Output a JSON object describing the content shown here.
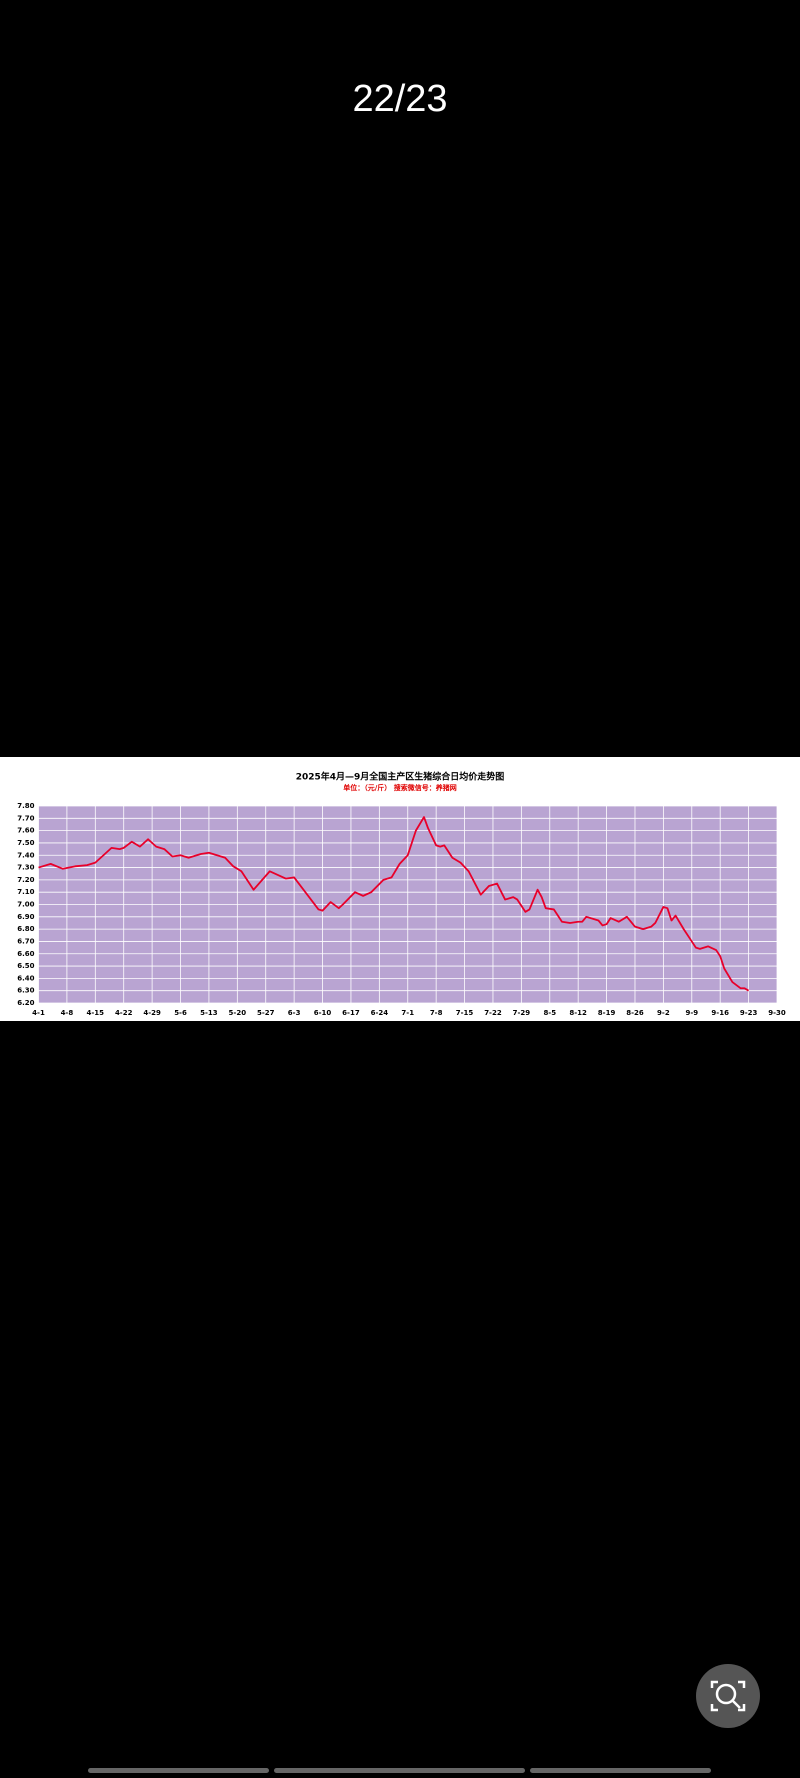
{
  "viewer": {
    "page_counter": "22/23"
  },
  "chart_data": {
    "type": "line",
    "title": "2025年4月—9月全国主产区生猪综合日均价走势图",
    "subtitle": "单位：（元/斤） 搜索微信号：养猪网",
    "color": "#e8002a",
    "background": "#b9a4d2",
    "grid": true,
    "x": [
      "4-1",
      "4-4",
      "4-7",
      "4-10",
      "4-13",
      "4-15",
      "4-17",
      "4-19",
      "4-21",
      "4-22",
      "4-24",
      "4-26",
      "4-28",
      "4-30",
      "5-2",
      "5-4",
      "5-6",
      "5-8",
      "5-11",
      "5-13",
      "5-15",
      "5-17",
      "5-19",
      "5-21",
      "5-24",
      "5-28",
      "6-1",
      "6-3",
      "6-9",
      "6-10",
      "6-12",
      "6-14",
      "6-15",
      "6-18",
      "6-20",
      "6-22",
      "6-25",
      "6-27",
      "6-29",
      "7-1",
      "7-3",
      "7-5",
      "7-6",
      "7-8",
      "7-9",
      "7-10",
      "7-12",
      "7-14",
      "7-16",
      "7-19",
      "7-21",
      "7-23",
      "7-25",
      "7-27",
      "7-28",
      "7-30",
      "7-31",
      "8-2",
      "8-3",
      "8-4",
      "8-6",
      "8-8",
      "8-10",
      "8-12",
      "8-13",
      "8-14",
      "8-16",
      "8-17",
      "8-18",
      "8-19",
      "8-20",
      "8-22",
      "8-24",
      "8-26",
      "8-28",
      "8-30",
      "8-31",
      "9-2",
      "9-3",
      "9-4",
      "9-5",
      "9-7",
      "9-9",
      "9-10",
      "9-11",
      "9-13",
      "9-15",
      "9-16",
      "9-17",
      "9-19",
      "9-21",
      "9-22",
      "9-23"
    ],
    "values": [
      7.3,
      7.33,
      7.29,
      7.31,
      7.32,
      7.34,
      7.4,
      7.46,
      7.45,
      7.46,
      7.51,
      7.47,
      7.53,
      7.47,
      7.45,
      7.39,
      7.4,
      7.38,
      7.41,
      7.42,
      7.4,
      7.38,
      7.31,
      7.27,
      7.12,
      7.27,
      7.21,
      7.22,
      6.96,
      6.95,
      7.02,
      6.97,
      7.0,
      7.1,
      7.07,
      7.1,
      7.2,
      7.22,
      7.33,
      7.4,
      7.6,
      7.71,
      7.62,
      7.48,
      7.47,
      7.48,
      7.38,
      7.34,
      7.27,
      7.08,
      7.15,
      7.17,
      7.04,
      7.06,
      7.04,
      6.94,
      6.96,
      7.12,
      7.06,
      6.97,
      6.96,
      6.86,
      6.85,
      6.86,
      6.86,
      6.9,
      6.88,
      6.87,
      6.83,
      6.84,
      6.89,
      6.86,
      6.9,
      6.82,
      6.8,
      6.82,
      6.85,
      6.98,
      6.97,
      6.87,
      6.91,
      6.8,
      6.7,
      6.65,
      6.64,
      6.66,
      6.63,
      6.58,
      6.48,
      6.37,
      6.32,
      6.32,
      6.3
    ],
    "xticks": [
      "4-1",
      "4-8",
      "4-15",
      "4-22",
      "4-29",
      "5-6",
      "5-13",
      "5-20",
      "5-27",
      "6-3",
      "6-10",
      "6-17",
      "6-24",
      "7-1",
      "7-8",
      "7-15",
      "7-22",
      "7-29",
      "8-5",
      "8-12",
      "8-19",
      "8-26",
      "9-2",
      "9-9",
      "9-16",
      "9-23",
      "9-30"
    ],
    "ylim": [
      6.2,
      7.8
    ],
    "yticks": [
      {
        "value": 6.2,
        "label": "6.20"
      },
      {
        "value": 6.3,
        "label": "6.30"
      },
      {
        "value": 6.4,
        "label": "6.40"
      },
      {
        "value": 6.5,
        "label": "6.50"
      },
      {
        "value": 6.6,
        "label": "6.60"
      },
      {
        "value": 6.7,
        "label": "6.70"
      },
      {
        "value": 6.8,
        "label": "6.80"
      },
      {
        "value": 6.9,
        "label": "6.90"
      },
      {
        "value": 7.0,
        "label": "7.00"
      },
      {
        "value": 7.1,
        "label": "7.10"
      },
      {
        "value": 7.2,
        "label": "7.20"
      },
      {
        "value": 7.3,
        "label": "7.30"
      },
      {
        "value": 7.4,
        "label": "7.40"
      },
      {
        "value": 7.5,
        "label": "7.50"
      },
      {
        "value": 7.6,
        "label": "7.60"
      },
      {
        "value": 7.7,
        "label": "7.70"
      },
      {
        "value": 7.8,
        "label": "7.80"
      }
    ]
  }
}
